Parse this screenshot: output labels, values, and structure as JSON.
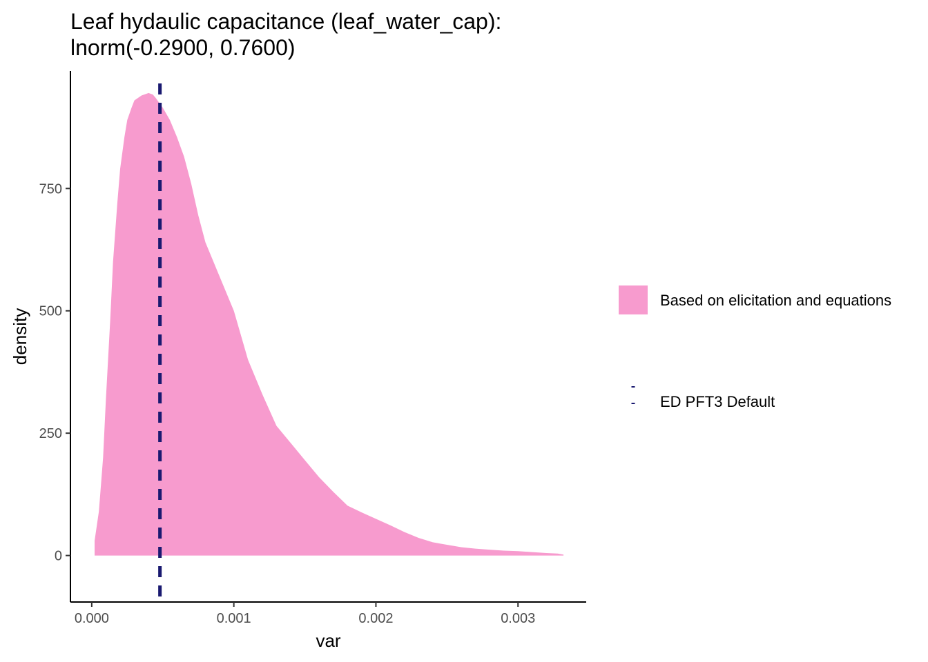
{
  "chart_data": {
    "type": "area",
    "title": "Leaf hydaulic capacitance (leaf_water_cap):",
    "subtitle": "lnorm(-0.2900, 0.7600)",
    "xlabel": "var",
    "ylabel": "density",
    "xlim": [
      -0.00015,
      0.00348
    ],
    "ylim": [
      -95,
      990
    ],
    "x_ticks": [
      0.0,
      0.001,
      0.002,
      0.003
    ],
    "x_tick_labels": [
      "0.000",
      "0.001",
      "0.002",
      "0.003"
    ],
    "y_ticks": [
      0,
      250,
      500,
      750
    ],
    "y_tick_labels": [
      "0",
      "250",
      "500",
      "750"
    ],
    "grid": false,
    "legend_position": "right",
    "series": [
      {
        "name": "Based on elicitation and equations",
        "kind": "density-area",
        "color": "#F79BCE",
        "x": [
          2e-05,
          2e-05,
          5e-05,
          8e-05,
          0.0001,
          0.00013,
          0.00015,
          0.00018,
          0.0002,
          0.00023,
          0.00025,
          0.00028,
          0.0003,
          0.00035,
          0.0004,
          0.00043,
          0.00045,
          0.0005,
          0.00055,
          0.0006,
          0.00065,
          0.0007,
          0.00075,
          0.0008,
          0.0009,
          0.001,
          0.0011,
          0.0012,
          0.0013,
          0.0014,
          0.0015,
          0.0016,
          0.0017,
          0.0018,
          0.0019,
          0.002,
          0.0021,
          0.0022,
          0.0023,
          0.0024,
          0.0025,
          0.0026,
          0.0027,
          0.0028,
          0.0029,
          0.003,
          0.0031,
          0.0032,
          0.00328,
          0.00332,
          0.00332
        ],
        "y": [
          0,
          30,
          90,
          200,
          320,
          480,
          600,
          720,
          790,
          855,
          890,
          915,
          930,
          940,
          945,
          942,
          935,
          915,
          890,
          855,
          815,
          760,
          695,
          640,
          570,
          500,
          400,
          330,
          265,
          230,
          195,
          160,
          130,
          102,
          88,
          75,
          62,
          48,
          36,
          27,
          22,
          17,
          14,
          12,
          10,
          9,
          7,
          5,
          4,
          2,
          0
        ]
      },
      {
        "name": "ED PFT3 Default",
        "kind": "vline",
        "color": "#191970",
        "x": 0.00048
      }
    ]
  }
}
